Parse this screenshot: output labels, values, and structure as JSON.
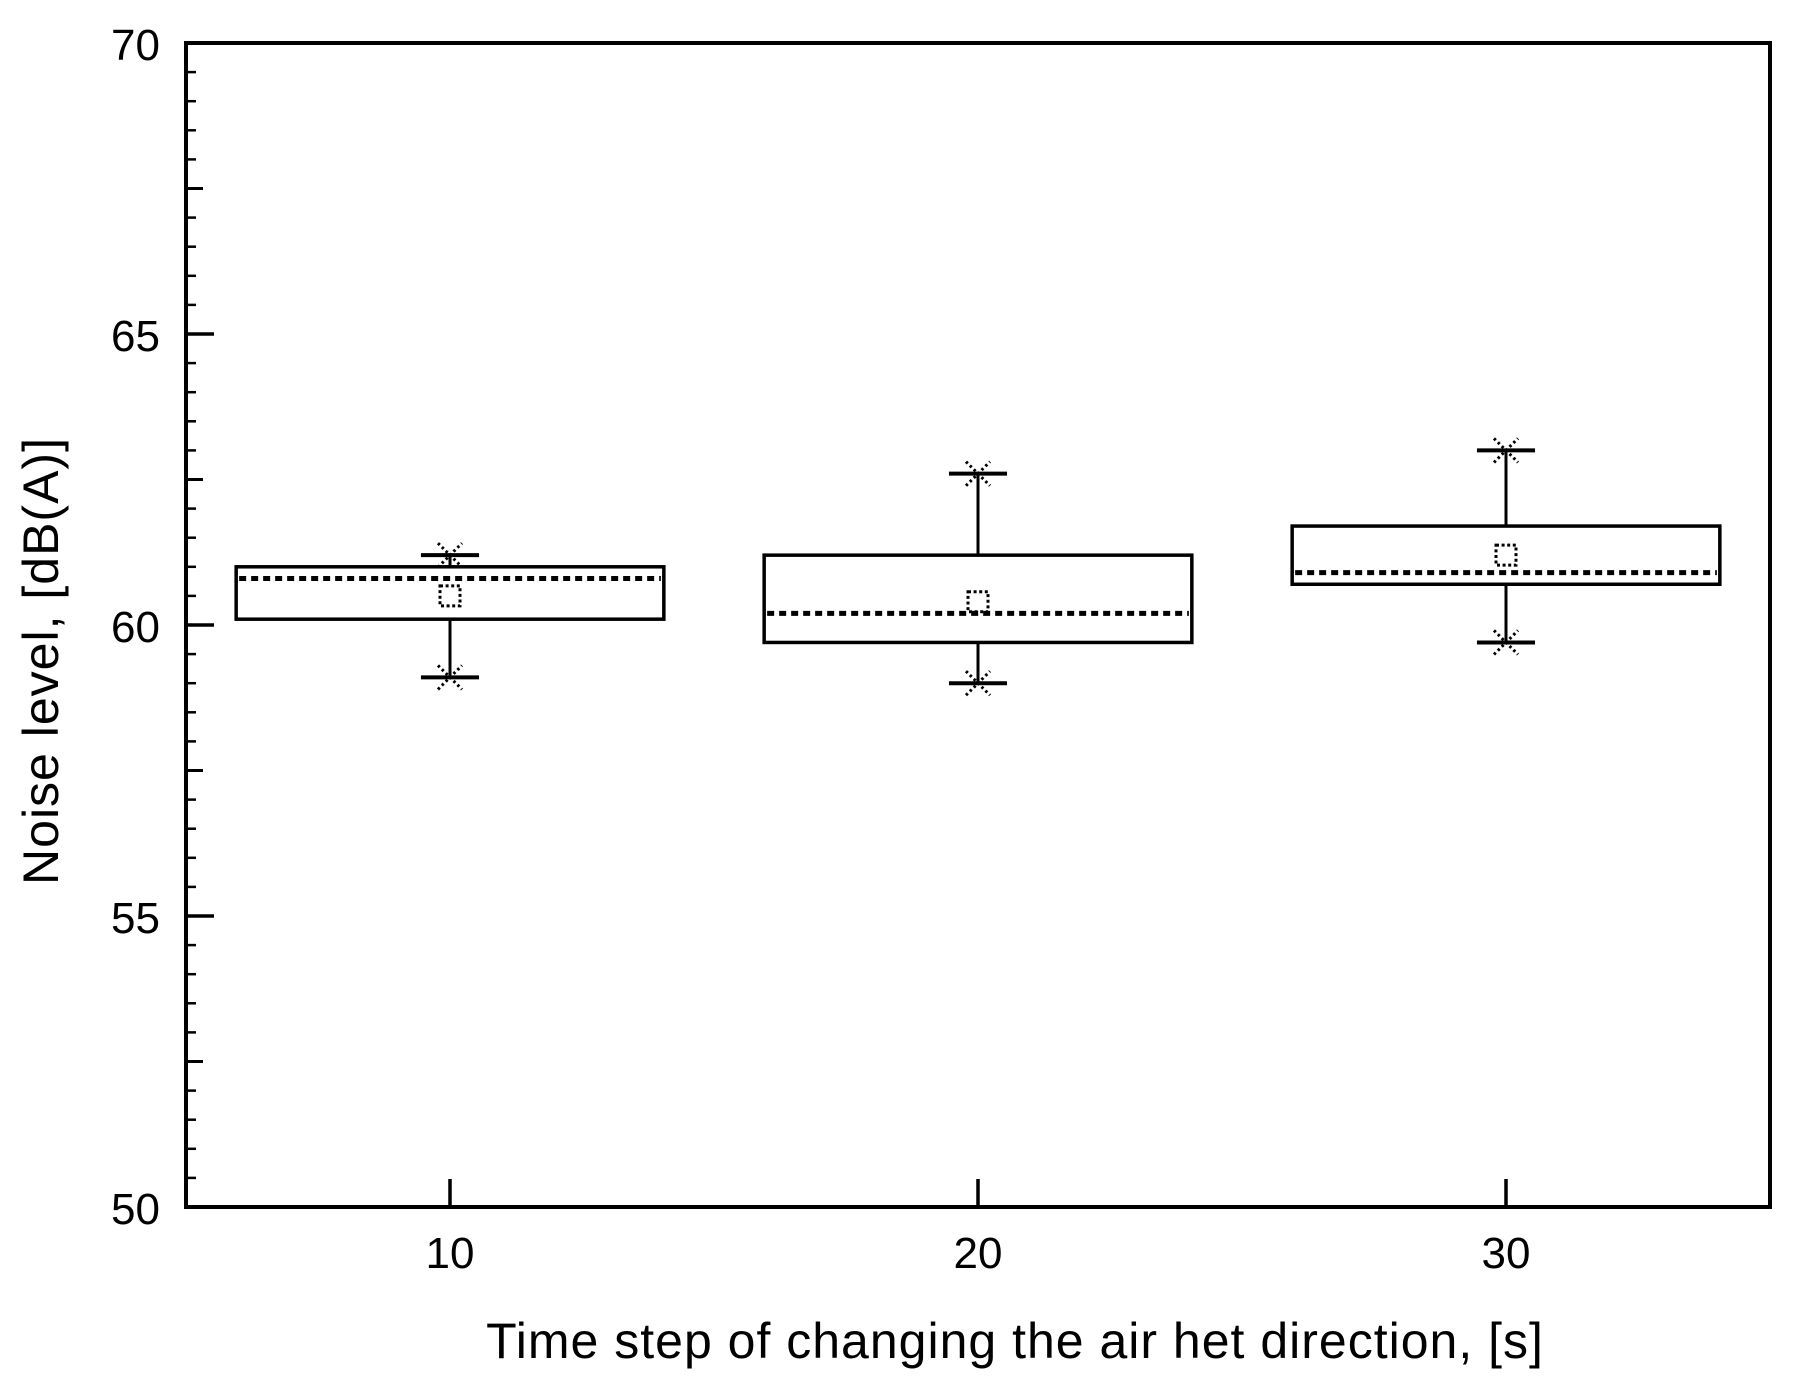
{
  "chart_data": {
    "type": "box",
    "title": "",
    "xlabel": "Time step of changing the air het direction, [s]",
    "ylabel": "Noise level, [dB(A)]",
    "xlim": [
      5,
      35
    ],
    "ylim": [
      50,
      70
    ],
    "x_ticks": [
      10,
      20,
      30
    ],
    "x_tick_labels": [
      "10",
      "20",
      "30"
    ],
    "y_major_ticks": [
      50,
      55,
      60,
      65,
      70
    ],
    "y_major_tick_labels": [
      "50",
      "55",
      "60",
      "65",
      "70"
    ],
    "y_medium_ticks": [
      52.5,
      57.5,
      62.5,
      67.5
    ],
    "y_minor_tick_step": 0.5,
    "grid": false,
    "legend": null,
    "box_half_width_x": 4.05,
    "whisker_cap_half_width_x": 0.55,
    "median_line_style": "dashed",
    "mean_marker": "dotted-open-square",
    "whisker_end_marker": "dotted-x-cross",
    "colors": {
      "ink": "#000000",
      "background": "#ffffff"
    },
    "series": [
      {
        "x": 10,
        "whisker_low": 59.1,
        "q1": 60.1,
        "median": 60.8,
        "mean": 60.5,
        "q3": 61.0,
        "whisker_high": 61.2
      },
      {
        "x": 20,
        "whisker_low": 59.0,
        "q1": 59.7,
        "median": 60.2,
        "mean": 60.4,
        "q3": 61.2,
        "whisker_high": 62.6
      },
      {
        "x": 30,
        "whisker_low": 59.7,
        "q1": 60.7,
        "median": 60.9,
        "mean": 61.2,
        "q3": 61.7,
        "whisker_high": 63.0
      }
    ]
  }
}
